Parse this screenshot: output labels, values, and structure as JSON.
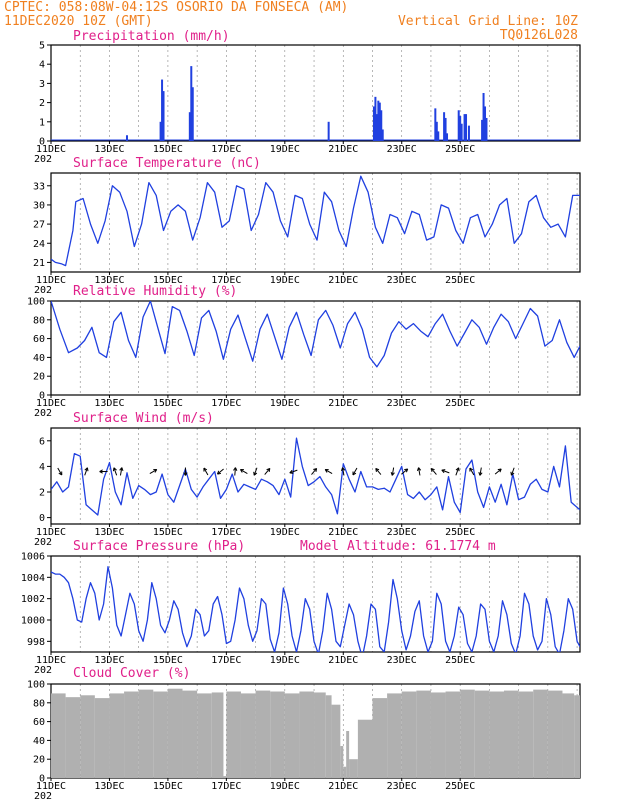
{
  "header": {
    "station_line": "CPTEC:   058:08W-04:12S   OSORIO DA FONSECA (AM)",
    "date_line": "11DEC2020 10Z (GMT)",
    "grid_note": "Vertical Grid Line: 10Z",
    "code": "TQ0126L028"
  },
  "x_axis": {
    "labels": [
      "11DEC",
      "13DEC",
      "15DEC",
      "17DEC",
      "19DEC",
      "21DEC",
      "23DEC",
      "25DEC"
    ],
    "year_fragment": "202"
  },
  "colors": {
    "header": "#f08020",
    "titles": "#e0208a",
    "line": "#2040e0",
    "bars": "#2040e0",
    "cloud": "#b0b0b0",
    "arrows": "#000000"
  },
  "chart_data": [
    {
      "type": "bar",
      "title": "Precipitation (mm/h)",
      "ylim": [
        0,
        5
      ],
      "yticks": [
        "0",
        "1",
        "2",
        "3",
        "4",
        "5"
      ],
      "x_unit": "days since 11DEC 10Z",
      "x": [
        2.6,
        3.75,
        3.8,
        3.85,
        4.75,
        4.8,
        4.85,
        9.5,
        11.05,
        11.1,
        11.15,
        11.2,
        11.25,
        11.3,
        11.35,
        13.15,
        13.2,
        13.25,
        13.45,
        13.5,
        13.55,
        13.95,
        14.0,
        14.05,
        14.15,
        14.2,
        14.3,
        14.75,
        14.8,
        14.85,
        14.9
      ],
      "values": [
        0.3,
        1.0,
        3.2,
        2.6,
        1.5,
        3.9,
        2.8,
        1.0,
        1.8,
        2.3,
        1.4,
        2.1,
        2.0,
        1.6,
        0.6,
        1.7,
        1.0,
        0.5,
        1.5,
        1.2,
        0.4,
        1.6,
        1.3,
        0.9,
        1.4,
        1.4,
        0.8,
        1.1,
        2.5,
        1.8,
        1.2
      ]
    },
    {
      "type": "line",
      "title": "Surface Temperature (nC)",
      "ylim": [
        19.5,
        35
      ],
      "yticks": [
        "21",
        "24",
        "27",
        "30",
        "33"
      ],
      "x_unit": "days since 11DEC 10Z",
      "x": [
        0,
        0.15,
        0.35,
        0.5,
        0.75,
        0.85,
        1.1,
        1.35,
        1.6,
        1.85,
        2.1,
        2.35,
        2.6,
        2.85,
        3.1,
        3.35,
        3.6,
        3.85,
        4.1,
        4.35,
        4.6,
        4.85,
        5.1,
        5.35,
        5.6,
        5.85,
        6.1,
        6.35,
        6.6,
        6.85,
        7.1,
        7.35,
        7.6,
        7.85,
        8.1,
        8.35,
        8.6,
        8.85,
        9.1,
        9.35,
        9.6,
        9.85,
        10.1,
        10.35,
        10.6,
        10.85,
        11.1,
        11.35,
        11.6,
        11.85,
        12.1,
        12.35,
        12.6,
        12.85,
        13.1,
        13.35,
        13.6,
        13.85,
        14.1,
        14.35,
        14.6,
        14.85,
        15.1,
        15.35,
        15.6,
        15.85,
        16.1,
        16.35,
        16.6,
        16.85,
        17.1,
        17.35,
        17.6,
        17.85,
        18.1
      ],
      "values": [
        21.5,
        21.0,
        20.8,
        20.5,
        26.0,
        30.5,
        31.0,
        27.0,
        24.0,
        27.5,
        33.0,
        32.0,
        29.0,
        23.5,
        27.0,
        33.5,
        31.5,
        26.0,
        29.0,
        30.0,
        29.0,
        24.5,
        28.0,
        33.5,
        32.0,
        26.5,
        27.5,
        33.0,
        32.5,
        26.0,
        28.5,
        33.5,
        32.0,
        27.5,
        25.0,
        31.5,
        31.0,
        27.0,
        24.5,
        32.0,
        30.5,
        26.0,
        23.5,
        29.5,
        34.5,
        32.0,
        26.5,
        24.0,
        28.5,
        28.0,
        25.5,
        29.0,
        28.5,
        24.5,
        25.0,
        30.0,
        29.5,
        26.0,
        24.0,
        28.0,
        28.5,
        25.0,
        27.0,
        30.0,
        31.0,
        24.0,
        25.5,
        30.5,
        31.5,
        28.0,
        26.5,
        27.0,
        25.0,
        31.5,
        31.5
      ]
    },
    {
      "type": "line",
      "title": "Relative Humidity (%)",
      "ylim": [
        0,
        100
      ],
      "yticks": [
        "0",
        "20",
        "40",
        "60",
        "80",
        "100"
      ],
      "x_unit": "days since 11DEC 10Z",
      "x": [
        0,
        0.3,
        0.6,
        0.9,
        1.15,
        1.4,
        1.65,
        1.9,
        2.15,
        2.4,
        2.65,
        2.9,
        3.15,
        3.4,
        3.65,
        3.9,
        4.15,
        4.4,
        4.65,
        4.9,
        5.15,
        5.4,
        5.65,
        5.9,
        6.15,
        6.4,
        6.65,
        6.9,
        7.15,
        7.4,
        7.65,
        7.9,
        8.15,
        8.4,
        8.65,
        8.9,
        9.15,
        9.4,
        9.65,
        9.9,
        10.15,
        10.4,
        10.65,
        10.9,
        11.15,
        11.4,
        11.65,
        11.9,
        12.15,
        12.4,
        12.65,
        12.9,
        13.15,
        13.4,
        13.65,
        13.9,
        14.15,
        14.4,
        14.65,
        14.9,
        15.15,
        15.4,
        15.65,
        15.9,
        16.15,
        16.4,
        16.65,
        16.9,
        17.15,
        17.4,
        17.65,
        17.9,
        18.1
      ],
      "values": [
        100,
        70,
        45,
        50,
        58,
        72,
        45,
        40,
        78,
        88,
        58,
        40,
        83,
        100,
        72,
        44,
        94,
        90,
        68,
        42,
        82,
        90,
        68,
        38,
        70,
        85,
        60,
        36,
        70,
        86,
        62,
        38,
        72,
        88,
        64,
        42,
        80,
        90,
        74,
        50,
        76,
        88,
        70,
        40,
        30,
        42,
        66,
        78,
        70,
        76,
        68,
        62,
        76,
        86,
        68,
        52,
        66,
        80,
        72,
        54,
        72,
        86,
        78,
        60,
        76,
        92,
        84,
        52,
        58,
        80,
        56,
        40,
        52
      ]
    },
    {
      "type": "line",
      "title": "Surface Wind (m/s)",
      "ylim": [
        -0.5,
        7
      ],
      "yticks": [
        "0",
        "2",
        "4",
        "6"
      ],
      "x_unit": "days since 11DEC 10Z",
      "x": [
        0,
        0.2,
        0.4,
        0.6,
        0.8,
        1.0,
        1.2,
        1.4,
        1.6,
        1.8,
        2.0,
        2.2,
        2.4,
        2.6,
        2.8,
        3.0,
        3.2,
        3.4,
        3.6,
        3.8,
        4.0,
        4.2,
        4.4,
        4.6,
        4.8,
        5.0,
        5.2,
        5.4,
        5.6,
        5.8,
        6.0,
        6.2,
        6.4,
        6.6,
        6.8,
        7.0,
        7.2,
        7.4,
        7.6,
        7.8,
        8.0,
        8.2,
        8.4,
        8.6,
        8.8,
        9.0,
        9.2,
        9.4,
        9.6,
        9.8,
        10.0,
        10.2,
        10.4,
        10.6,
        10.8,
        11.0,
        11.2,
        11.4,
        11.6,
        11.8,
        12.0,
        12.2,
        12.4,
        12.6,
        12.8,
        13.0,
        13.2,
        13.4,
        13.6,
        13.8,
        14.0,
        14.2,
        14.4,
        14.6,
        14.8,
        15.0,
        15.2,
        15.4,
        15.6,
        15.8,
        16.0,
        16.2,
        16.4,
        16.6,
        16.8,
        17.0,
        17.2,
        17.4,
        17.6,
        17.8,
        18.1
      ],
      "values": [
        2.2,
        2.8,
        2.0,
        2.4,
        5.0,
        4.8,
        1.0,
        0.6,
        0.2,
        3.0,
        4.3,
        2.0,
        1.0,
        3.5,
        1.5,
        2.5,
        2.2,
        1.8,
        2.0,
        3.4,
        1.8,
        1.2,
        2.5,
        3.8,
        2.2,
        1.6,
        2.4,
        3.0,
        3.6,
        1.5,
        2.2,
        3.4,
        2.0,
        2.6,
        2.4,
        2.2,
        3.0,
        2.8,
        2.5,
        1.8,
        3.0,
        1.6,
        6.2,
        4.0,
        2.5,
        2.8,
        3.2,
        2.4,
        1.8,
        0.3,
        4.2,
        3.0,
        2.0,
        3.6,
        2.4,
        2.4,
        2.2,
        2.3,
        2.0,
        3.0,
        4.0,
        1.8,
        1.5,
        2.0,
        1.4,
        1.8,
        2.4,
        0.6,
        3.2,
        1.2,
        0.4,
        3.8,
        4.5,
        2.0,
        0.8,
        2.4,
        1.2,
        2.6,
        1.0,
        3.4,
        1.4,
        1.6,
        2.6,
        3.0,
        2.2,
        2.0,
        4.0,
        2.4,
        5.6,
        1.2,
        0.6
      ]
    },
    {
      "type": "line",
      "title": "Surface Pressure (hPa)",
      "note": "Model Altitude: 61.1774 m",
      "ylim": [
        997,
        1006
      ],
      "yticks": [
        "998",
        "1000",
        "1002",
        "1004",
        "1006"
      ],
      "x_unit": "days since 11DEC 10Z",
      "x": [
        0,
        0.15,
        0.3,
        0.45,
        0.6,
        0.75,
        0.9,
        1.05,
        1.2,
        1.35,
        1.5,
        1.65,
        1.8,
        1.95,
        2.1,
        2.25,
        2.4,
        2.55,
        2.7,
        2.85,
        3.0,
        3.15,
        3.3,
        3.45,
        3.6,
        3.75,
        3.9,
        4.05,
        4.2,
        4.35,
        4.5,
        4.65,
        4.8,
        4.95,
        5.1,
        5.25,
        5.4,
        5.55,
        5.7,
        5.85,
        6.0,
        6.15,
        6.3,
        6.45,
        6.6,
        6.75,
        6.9,
        7.05,
        7.2,
        7.35,
        7.5,
        7.65,
        7.8,
        7.95,
        8.1,
        8.25,
        8.4,
        8.55,
        8.7,
        8.85,
        9.0,
        9.15,
        9.3,
        9.45,
        9.6,
        9.75,
        9.9,
        10.05,
        10.2,
        10.35,
        10.5,
        10.65,
        10.8,
        10.95,
        11.1,
        11.25,
        11.4,
        11.55,
        11.7,
        11.85,
        12.0,
        12.15,
        12.3,
        12.45,
        12.6,
        12.75,
        12.9,
        13.05,
        13.2,
        13.35,
        13.5,
        13.65,
        13.8,
        13.95,
        14.1,
        14.25,
        14.4,
        14.55,
        14.7,
        14.85,
        15.0,
        15.15,
        15.3,
        15.45,
        15.6,
        15.75,
        15.9,
        16.05,
        16.2,
        16.35,
        16.5,
        16.65,
        16.8,
        16.95,
        17.1,
        17.25,
        17.4,
        17.55,
        17.7,
        17.85,
        18.0,
        18.1
      ],
      "values": [
        1004.5,
        1004.3,
        1004.3,
        1004.0,
        1003.5,
        1002.0,
        1000.0,
        999.8,
        1002.0,
        1003.5,
        1002.5,
        1000.0,
        1001.5,
        1005.0,
        1003.0,
        999.5,
        998.5,
        1000.5,
        1002.5,
        1001.5,
        999.0,
        998.0,
        1000.0,
        1003.5,
        1002.0,
        999.5,
        998.8,
        1000.0,
        1001.8,
        1001.0,
        998.8,
        997.5,
        998.5,
        1001.0,
        1000.5,
        998.5,
        999.0,
        1001.5,
        1002.2,
        1000.5,
        997.8,
        998.0,
        1000.0,
        1003.0,
        1002.0,
        999.5,
        998.0,
        999.0,
        1002.0,
        1001.5,
        998.2,
        997.0,
        998.8,
        1003.0,
        1001.5,
        998.5,
        997.0,
        999.0,
        1002.0,
        1001.0,
        998.0,
        996.8,
        999.0,
        1002.5,
        1001.0,
        998.0,
        997.5,
        999.5,
        1001.5,
        1000.5,
        998.0,
        996.5,
        998.5,
        1001.5,
        1001.0,
        997.5,
        997.0,
        999.8,
        1003.8,
        1002.0,
        999.0,
        997.2,
        998.5,
        1000.8,
        1001.8,
        998.5,
        997.0,
        998.0,
        1002.5,
        1001.5,
        998.0,
        997.0,
        998.5,
        1001.2,
        1000.5,
        997.8,
        997.0,
        998.5,
        1001.5,
        1001.0,
        998.0,
        997.0,
        998.5,
        1001.8,
        1000.5,
        997.8,
        996.8,
        998.5,
        1002.5,
        1001.5,
        998.5,
        997.2,
        998.0,
        1002.0,
        1000.5,
        997.5,
        996.8,
        999.0,
        1002.0,
        1001.0,
        998.0,
        997.5
      ]
    },
    {
      "type": "bar",
      "title": "Cloud Cover (%)",
      "ylim": [
        0,
        100
      ],
      "yticks": [
        "0",
        "20",
        "40",
        "60",
        "80",
        "100"
      ],
      "x_unit": "days since 11DEC 10Z",
      "x": [
        0,
        0.5,
        1.0,
        1.5,
        2.0,
        2.5,
        3.0,
        3.5,
        4.0,
        4.5,
        5.0,
        5.5,
        5.9,
        6.0,
        6.5,
        7.0,
        7.5,
        8.0,
        8.5,
        9.0,
        9.4,
        9.6,
        9.9,
        10.0,
        10.1,
        10.2,
        10.5,
        11.0,
        11.5,
        12.0,
        12.5,
        13.0,
        13.5,
        14.0,
        14.5,
        15.0,
        15.5,
        16.0,
        16.5,
        17.0,
        17.5,
        17.9,
        18.1
      ],
      "values": [
        90,
        86,
        88,
        85,
        90,
        92,
        94,
        92,
        95,
        93,
        90,
        91,
        2,
        92,
        90,
        93,
        92,
        90,
        92,
        91,
        88,
        78,
        34,
        12,
        50,
        20,
        62,
        85,
        90,
        92,
        93,
        91,
        92,
        94,
        93,
        92,
        93,
        92,
        94,
        93,
        90,
        88,
        85
      ]
    }
  ]
}
